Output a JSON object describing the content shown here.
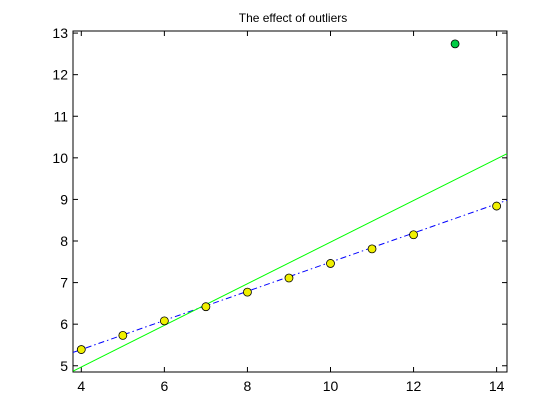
{
  "chart_data": {
    "type": "scatter",
    "title": "The effect of outliers",
    "xlabel": "",
    "ylabel": "",
    "xlim": [
      3.8,
      14.25
    ],
    "ylim": [
      4.85,
      13.05
    ],
    "xticks": [
      4,
      6,
      8,
      10,
      12,
      14
    ],
    "yticks": [
      5,
      6,
      7,
      8,
      9,
      10,
      11,
      12,
      13
    ],
    "grid": false,
    "series": [
      {
        "kind": "points",
        "marker": "circle",
        "color": "#f0f000",
        "edge_color": "#000000",
        "points": [
          {
            "x": 4,
            "y": 5.39
          },
          {
            "x": 5,
            "y": 5.73
          },
          {
            "x": 6,
            "y": 6.08
          },
          {
            "x": 7,
            "y": 6.42
          },
          {
            "x": 8,
            "y": 6.77
          },
          {
            "x": 9,
            "y": 7.11
          },
          {
            "x": 10,
            "y": 7.46
          },
          {
            "x": 11,
            "y": 7.81
          },
          {
            "x": 12,
            "y": 8.15
          },
          {
            "x": 14,
            "y": 8.84
          }
        ]
      },
      {
        "kind": "points",
        "marker": "circle",
        "color": "#00cc44",
        "edge_color": "#000000",
        "points": [
          {
            "x": 13,
            "y": 12.74
          }
        ]
      },
      {
        "kind": "line",
        "style": "dash-dot",
        "color": "#0000ff",
        "points": [
          {
            "x": 3.8,
            "y": 5.32
          },
          {
            "x": 14.25,
            "y": 8.98
          }
        ]
      },
      {
        "kind": "line",
        "style": "solid",
        "color": "#00ff00",
        "points": [
          {
            "x": 3.8,
            "y": 4.87
          },
          {
            "x": 14.25,
            "y": 10.1
          }
        ]
      }
    ]
  }
}
